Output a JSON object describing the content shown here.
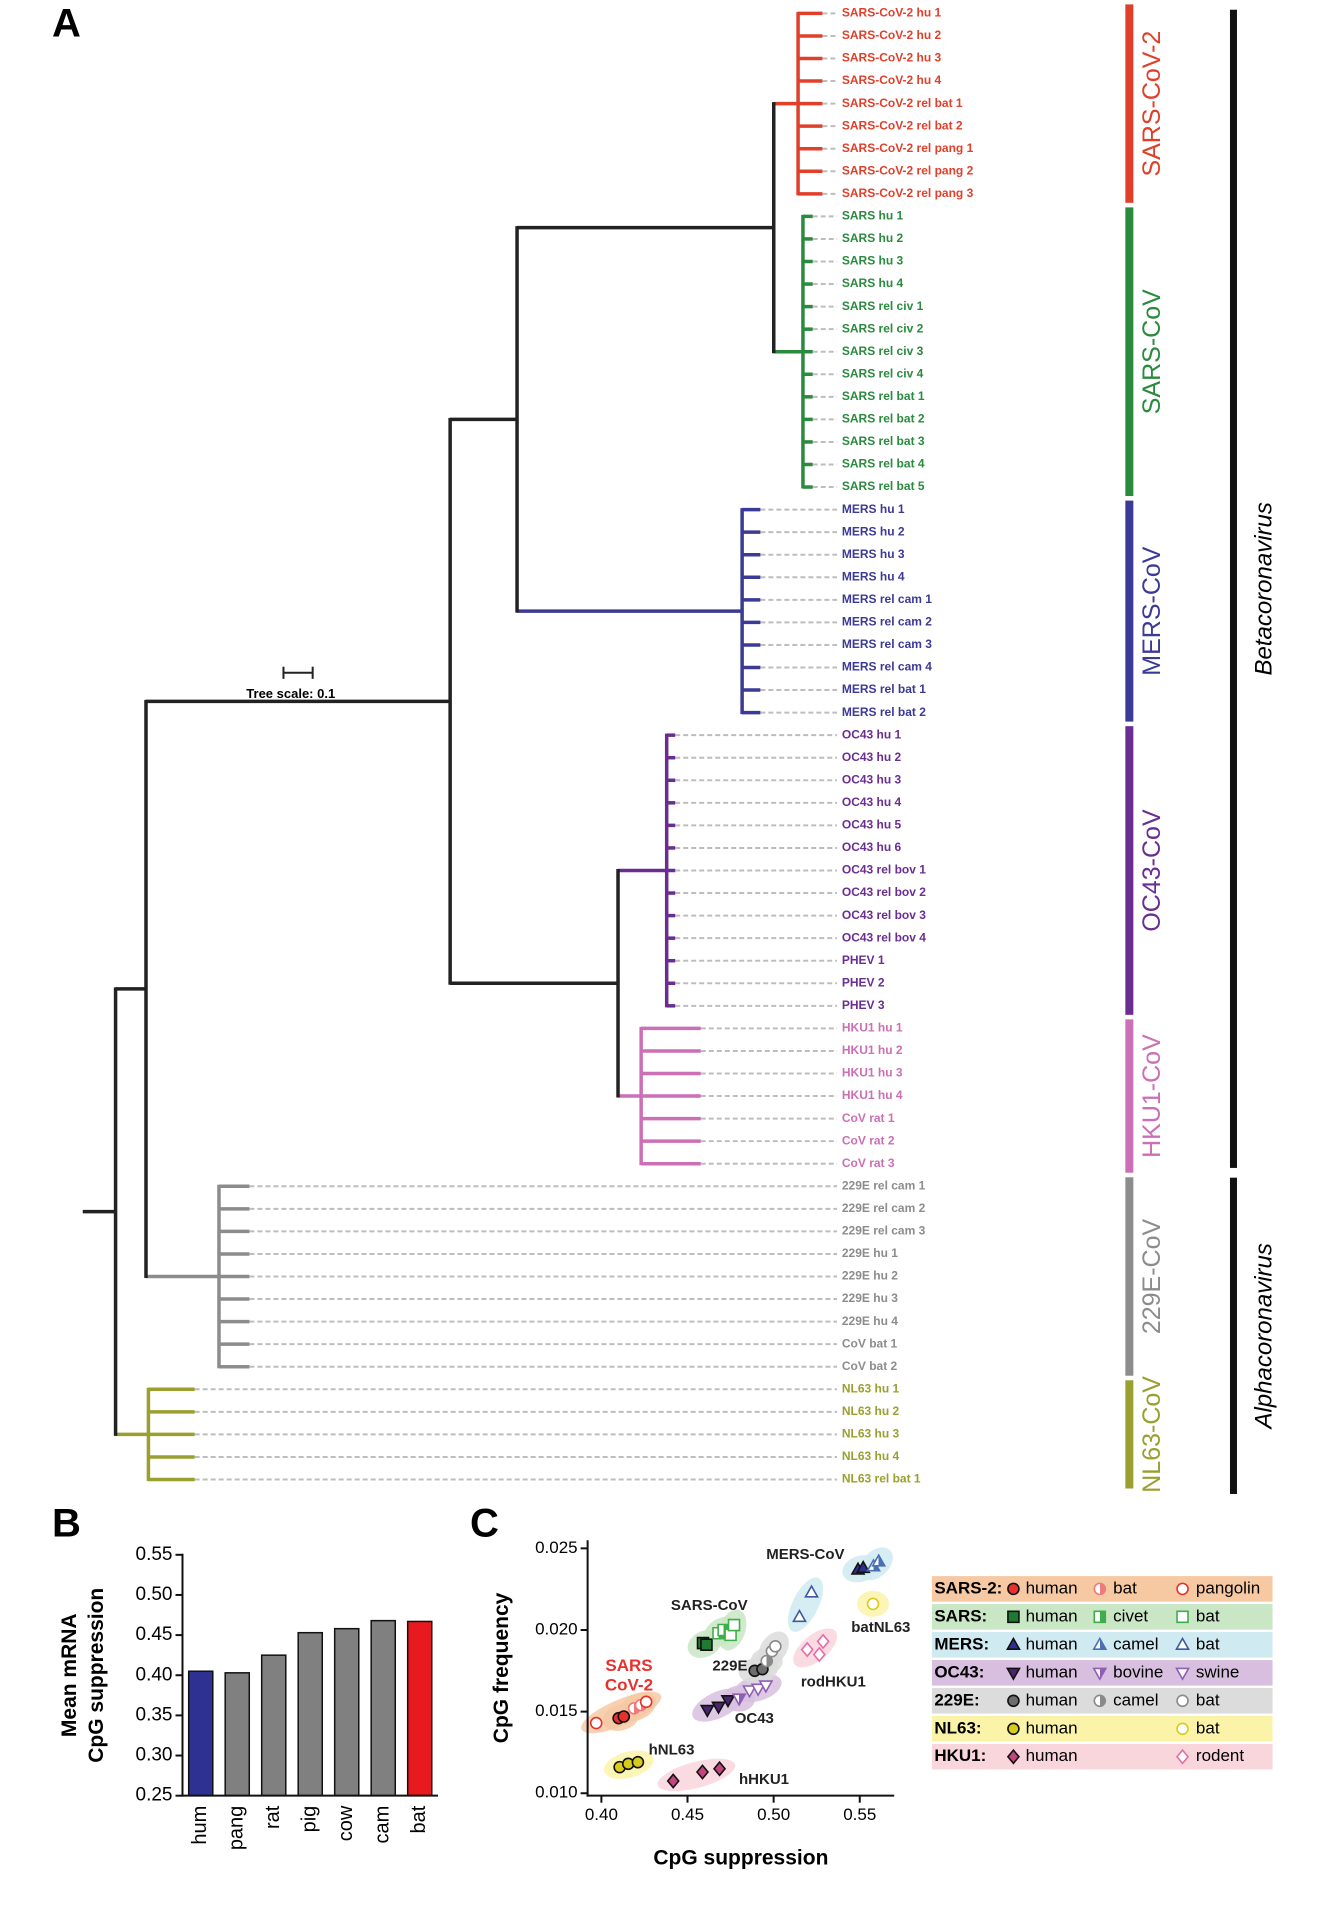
{
  "tree": {
    "panel": "A",
    "scale_label": "Tree scale: 0.1",
    "clades": [
      {
        "name": "SARS-CoV-2",
        "color": "#e0402a",
        "leaves": [
          "SARS-CoV-2 hu 1",
          "SARS-CoV-2 hu 2",
          "SARS-CoV-2 hu 3",
          "SARS-CoV-2 hu 4",
          "SARS-CoV-2 rel bat 1",
          "SARS-CoV-2 rel bat 2",
          "SARS-CoV-2 rel pang 1",
          "SARS-CoV-2 rel pang 2",
          "SARS-CoV-2 rel pang 3"
        ]
      },
      {
        "name": "SARS-CoV",
        "color": "#2a8a3e",
        "leaves": [
          "SARS hu 1",
          "SARS hu 2",
          "SARS hu 3",
          "SARS hu 4",
          "SARS rel civ 1",
          "SARS rel civ 2",
          "SARS rel civ 3",
          "SARS rel civ 4",
          "SARS rel bat 1",
          "SARS rel bat 2",
          "SARS rel bat 3",
          "SARS rel bat 4",
          "SARS rel bat 5"
        ]
      },
      {
        "name": "MERS-CoV",
        "color": "#3b3a96",
        "leaves": [
          "MERS hu 1",
          "MERS hu 2",
          "MERS hu 3",
          "MERS hu 4",
          "MERS rel cam 1",
          "MERS rel cam 2",
          "MERS rel cam 3",
          "MERS rel cam 4",
          "MERS rel bat 1",
          "MERS rel bat 2"
        ]
      },
      {
        "name": "OC43-CoV",
        "color": "#6a2d91",
        "leaves": [
          "OC43 hu 1",
          "OC43 hu 2",
          "OC43 hu 3",
          "OC43 hu 4",
          "OC43 hu 5",
          "OC43 hu 6",
          "OC43 rel bov 1",
          "OC43 rel bov 2",
          "OC43 rel bov 3",
          "OC43 rel bov 4",
          "PHEV 1",
          "PHEV 2",
          "PHEV 3"
        ]
      },
      {
        "name": "HKU1-CoV",
        "color": "#cc6fb5",
        "leaves": [
          "HKU1 hu 1",
          "HKU1 hu 2",
          "HKU1 hu 3",
          "HKU1 hu 4",
          "CoV rat 1",
          "CoV rat 2",
          "CoV rat 3"
        ]
      },
      {
        "name": "229E-CoV",
        "color": "#8c8c8c",
        "leaves": [
          "229E rel cam 1",
          "229E rel cam 2",
          "229E rel cam 3",
          "229E hu 1",
          "229E hu 2",
          "229E hu 3",
          "229E hu 4",
          "CoV bat 1",
          "CoV bat 2"
        ]
      },
      {
        "name": "NL63-CoV",
        "color": "#9aa02f",
        "leaves": [
          "NL63 hu 1",
          "NL63 hu 2",
          "NL63 hu 3",
          "NL63 hu 4",
          "NL63 rel bat 1"
        ]
      }
    ],
    "genera": [
      "Betacoronavirus",
      "Alphacoronavirus"
    ]
  },
  "chart_data": [
    {
      "type": "bar",
      "panel": "B",
      "y_label": [
        "Mean mRNA",
        "CpG suppression"
      ],
      "categories": [
        "hum",
        "pang",
        "rat",
        "pig",
        "cow",
        "cam",
        "bat"
      ],
      "values": [
        0.405,
        0.403,
        0.425,
        0.453,
        0.458,
        0.468,
        0.467
      ],
      "colors": [
        "#2e3192",
        "#808080",
        "#808080",
        "#808080",
        "#808080",
        "#808080",
        "#e8191f"
      ],
      "ylim": [
        0.25,
        0.55
      ],
      "yticks": [
        0.25,
        {
          "value": 0.3,
          "label": "0.30"
        },
        0.35,
        {
          "value": 0.4,
          "label": "0.40"
        },
        0.45,
        {
          "value": 0.5,
          "label": "0.50"
        },
        0.55
      ]
    },
    {
      "type": "scatter",
      "panel": "C",
      "x_label": "CpG suppression",
      "y_label": "CpG frequency",
      "xlim": [
        0.392,
        0.57
      ],
      "xticks": [
        {
          "value": 0.4,
          "label": "0.40"
        },
        0.45,
        {
          "value": 0.5,
          "label": "0.50"
        },
        0.55
      ],
      "ylim": [
        0.00985,
        0.0255
      ],
      "yticks": [
        {
          "value": 0.01,
          "label": "0.010"
        },
        0.015,
        {
          "value": 0.02,
          "label": "0.020"
        },
        0.025
      ],
      "groups": [
        {
          "label": "SARS-2:",
          "background": "#f6c9a3",
          "series": [
            {
              "name": "human",
              "color": "#e8312e",
              "marker": "circle",
              "fill": "full",
              "x": [
                0.41,
                0.413
              ],
              "y": [
                0.0146,
                0.0147
              ]
            },
            {
              "name": "bat",
              "color": "#f07a7a",
              "marker": "circle",
              "fill": "half",
              "x": [
                0.419,
                0.423
              ],
              "y": [
                0.0152,
                0.0154
              ]
            },
            {
              "name": "pangolin",
              "color": "#e8312e",
              "marker": "circle",
              "fill": "open",
              "x": [
                0.397,
                0.426
              ],
              "y": [
                0.0143,
                0.0156
              ]
            }
          ]
        },
        {
          "label": "SARS:",
          "background": "#c9e6c5",
          "series": [
            {
              "name": "human",
              "color": "#1f7a32",
              "marker": "square",
              "fill": "full",
              "x": [
                0.459,
                0.461
              ],
              "y": [
                0.0192,
                0.0191
              ]
            },
            {
              "name": "civet",
              "color": "#3fae4a",
              "marker": "square",
              "fill": "half",
              "x": [
                0.468,
                0.471
              ],
              "y": [
                0.0198,
                0.02
              ]
            },
            {
              "name": "bat",
              "color": "#3fae4a",
              "marker": "square",
              "fill": "open",
              "x": [
                0.475,
                0.477
              ],
              "y": [
                0.0197,
                0.0203
              ]
            }
          ]
        },
        {
          "label": "MERS:",
          "background": "#cfeaf1",
          "series": [
            {
              "name": "human",
              "color": "#2e3192",
              "marker": "triangle",
              "fill": "full",
              "x": [
                0.549,
                0.552
              ],
              "y": [
                0.0237,
                0.0238
              ]
            },
            {
              "name": "camel",
              "color": "#4a6fb4",
              "marker": "triangle",
              "fill": "half",
              "x": [
                0.558,
                0.561
              ],
              "y": [
                0.0239,
                0.0242
              ]
            },
            {
              "name": "bat",
              "color": "#3b5aa0",
              "marker": "triangle",
              "fill": "open",
              "x": [
                0.515,
                0.522
              ],
              "y": [
                0.0208,
                0.0223
              ]
            }
          ]
        },
        {
          "label": "OC43:",
          "background": "#d8bfdf",
          "series": [
            {
              "name": "human",
              "color": "#4b2470",
              "marker": "down",
              "fill": "full",
              "x": [
                0.4615,
                0.468,
                0.4735
              ],
              "y": [
                0.0151,
                0.0153,
                0.0157
              ]
            },
            {
              "name": "bovine",
              "color": "#8e5fb5",
              "marker": "down",
              "fill": "half",
              "x": [
                0.48
              ],
              "y": [
                0.0158
              ]
            },
            {
              "name": "swine",
              "color": "#8e5fb5",
              "marker": "down",
              "fill": "open",
              "x": [
                0.486,
                0.491,
                0.4955
              ],
              "y": [
                0.0163,
                0.0164,
                0.0166
              ]
            }
          ]
        },
        {
          "label": "229E:",
          "background": "#dcdcdc",
          "series": [
            {
              "name": "human",
              "color": "#6d6d6d",
              "marker": "circle",
              "fill": "full",
              "x": [
                0.489,
                0.4935
              ],
              "y": [
                0.0175,
                0.0176
              ]
            },
            {
              "name": "camel",
              "color": "#8a8a8a",
              "marker": "circle",
              "fill": "half",
              "x": [
                0.496
              ],
              "y": [
                0.0181
              ]
            },
            {
              "name": "bat",
              "color": "#8a8a8a",
              "marker": "circle",
              "fill": "open",
              "x": [
                0.499,
                0.501
              ],
              "y": [
                0.0187,
                0.019
              ]
            }
          ]
        },
        {
          "label": "NL63:",
          "background": "#fbf3a8",
          "series": [
            {
              "name": "human",
              "color": "#d8cc1a",
              "marker": "circle",
              "fill": "full",
              "x": [
                0.4106,
                0.4156,
                0.4212
              ],
              "y": [
                0.0116,
                0.0118,
                0.0119
              ]
            },
            {
              "name": "bat",
              "color": "#d8cc1a",
              "marker": "circle",
              "fill": "open",
              "x": [
                0.5577
              ],
              "y": [
                0.0216
              ]
            }
          ]
        },
        {
          "label": "HKU1:",
          "background": "#f9d5dc",
          "series": [
            {
              "name": "human",
              "color": "#c2457d",
              "marker": "diamond",
              "fill": "full",
              "x": [
                0.4417,
                0.4587,
                0.4686
              ],
              "y": [
                0.01075,
                0.0113,
                0.0115
              ]
            },
            {
              "name": "rodent",
              "color": "#e86aa8",
              "marker": "diamond",
              "fill": "open",
              "x": [
                0.5195,
                0.5287,
                0.5265
              ],
              "y": [
                0.0188,
                0.0193,
                0.0185
              ]
            }
          ]
        }
      ],
      "annotations": [
        {
          "text": "MERS-CoV"
        },
        {
          "text": "SARS-CoV"
        },
        {
          "text": "SARS",
          "color": "#e8312e"
        },
        {
          "text": "CoV-2",
          "color": "#e8312e"
        },
        {
          "text": "229E"
        },
        {
          "text": "OC43"
        },
        {
          "text": "hNL63"
        },
        {
          "text": "hHKU1"
        },
        {
          "text": "batNL63"
        },
        {
          "text": "rodHKU1"
        }
      ]
    }
  ]
}
